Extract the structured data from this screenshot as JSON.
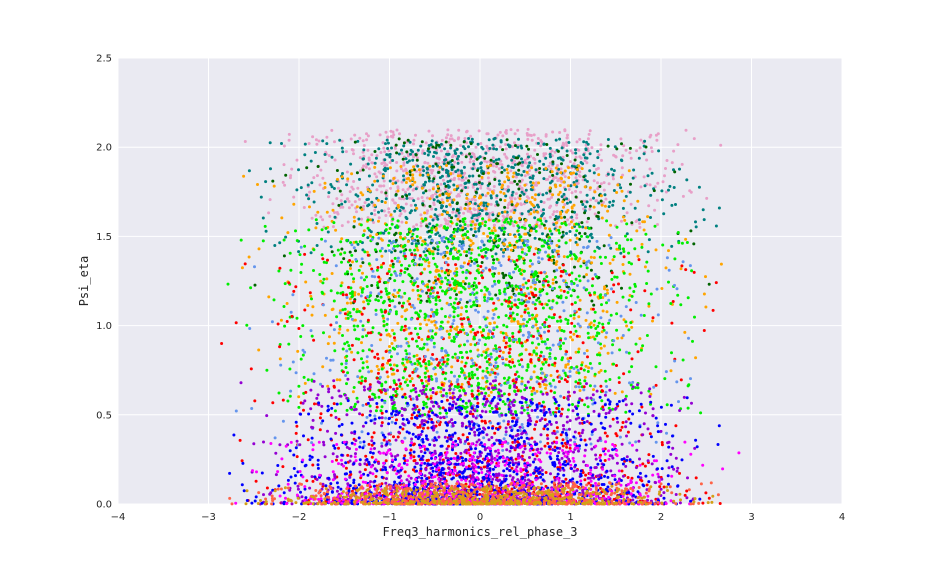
{
  "chart_data": {
    "type": "scatter",
    "title": "",
    "xlabel": "Freq3_harmonics_rel_phase_3",
    "ylabel": "Psi_eta",
    "xlim": [
      -4,
      4
    ],
    "ylim": [
      0.0,
      2.5
    ],
    "xticks": [
      -4,
      -3,
      -2,
      -1,
      0,
      1,
      2,
      3,
      4
    ],
    "xtick_labels": [
      "−4",
      "−3",
      "−2",
      "−1",
      "0",
      "1",
      "2",
      "3",
      "4"
    ],
    "yticks": [
      0.0,
      0.5,
      1.0,
      1.5,
      2.0,
      2.5
    ],
    "ytick_labels": [
      "0.0",
      "0.5",
      "1.0",
      "1.5",
      "2.0",
      "2.5"
    ],
    "grid": true,
    "legend": "none",
    "background_color": "#eaeaf2",
    "groups": [
      {
        "color": "#e8a0c8",
        "x_range": [
          -3.0,
          3.0
        ],
        "y_range": [
          1.55,
          2.1
        ],
        "approx_points": 900
      },
      {
        "color": "#008080",
        "x_range": [
          -3.0,
          3.0
        ],
        "y_range": [
          1.4,
          2.05
        ],
        "approx_points": 700
      },
      {
        "color": "#006400",
        "x_range": [
          -2.8,
          2.8
        ],
        "y_range": [
          1.1,
          2.05
        ],
        "approx_points": 300
      },
      {
        "color": "#ffa500",
        "x_range": [
          -3.0,
          3.0
        ],
        "y_range": [
          0.6,
          1.9
        ],
        "approx_points": 800
      },
      {
        "color": "#00ee00",
        "x_range": [
          -3.0,
          3.0
        ],
        "y_range": [
          0.5,
          1.6
        ],
        "approx_points": 1200
      },
      {
        "color": "#ff0000",
        "x_range": [
          -3.1,
          3.1
        ],
        "y_range": [
          0.0,
          1.4
        ],
        "approx_points": 900
      },
      {
        "color": "#6495ed",
        "x_range": [
          -3.0,
          3.0
        ],
        "y_range": [
          0.3,
          1.5
        ],
        "approx_points": 500
      },
      {
        "color": "#9400d3",
        "x_range": [
          -3.0,
          3.0
        ],
        "y_range": [
          0.0,
          0.7
        ],
        "approx_points": 1100
      },
      {
        "color": "#0000ff",
        "x_range": [
          -3.0,
          3.0
        ],
        "y_range": [
          0.0,
          0.6
        ],
        "approx_points": 1000
      },
      {
        "color": "#ff00ff",
        "x_range": [
          -3.0,
          3.0
        ],
        "y_range": [
          0.0,
          0.35
        ],
        "approx_points": 500
      },
      {
        "color": "#ff6347",
        "x_range": [
          -3.0,
          3.0
        ],
        "y_range": [
          0.0,
          0.12
        ],
        "approx_points": 600
      },
      {
        "color": "#d4a017",
        "x_range": [
          -3.0,
          3.0
        ],
        "y_range": [
          0.0,
          0.1
        ],
        "approx_points": 400
      }
    ]
  }
}
